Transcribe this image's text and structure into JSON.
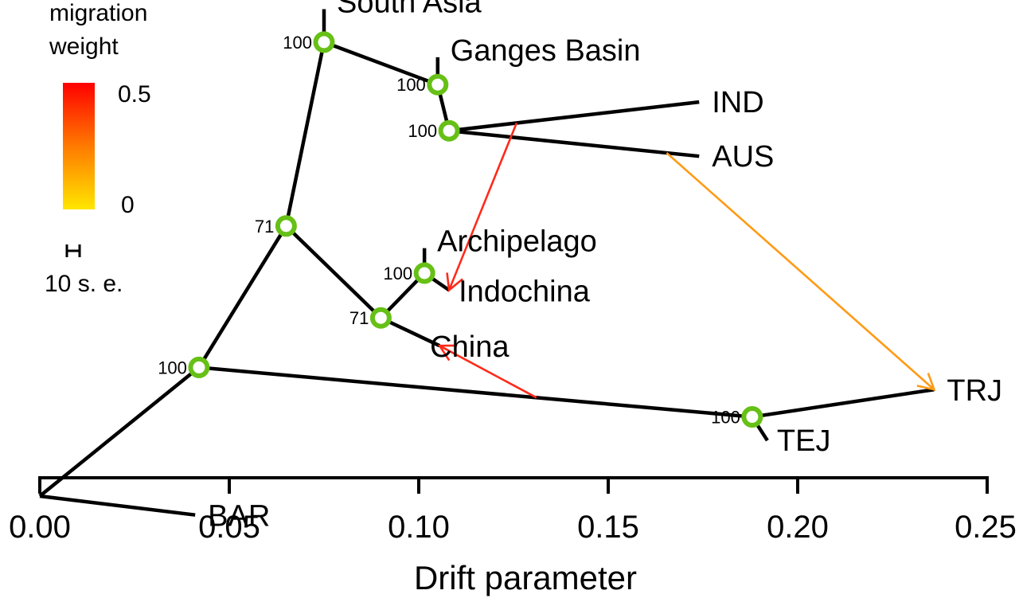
{
  "chart_data": {
    "type": "tree",
    "xlabel": "Drift parameter",
    "xlim": [
      0.0,
      0.25
    ],
    "xticks": [
      0.0,
      0.05,
      0.1,
      0.15,
      0.2,
      0.25
    ],
    "xtick_labels": [
      "0.00",
      "0.05",
      "0.10",
      "0.15",
      "0.20",
      "0.25"
    ],
    "legend": {
      "title_lines": [
        "migration",
        "weight"
      ],
      "scale_max_label": "0.5",
      "scale_min_label": "0",
      "gradient_colors": [
        "#ff0000",
        "#ffe600"
      ],
      "se_label": "10 s. e."
    },
    "nodes": [
      {
        "id": "root",
        "x": 0.0,
        "row": 9.73
      },
      {
        "id": "n_cult",
        "x": 0.042,
        "row": 7.0,
        "support": "100"
      },
      {
        "id": "n_indica_aus",
        "x": 0.065,
        "row": 4.0,
        "support": "71"
      },
      {
        "id": "n_sa",
        "x": 0.075,
        "row": 0.1,
        "support": "100"
      },
      {
        "id": "n_gb",
        "x": 0.105,
        "row": 1.0,
        "support": "100"
      },
      {
        "id": "n_ind_aus",
        "x": 0.108,
        "row": 1.98,
        "support": "100"
      },
      {
        "id": "n_ai",
        "x": 0.1015,
        "row": 5.0,
        "support": "100"
      },
      {
        "id": "n_sea",
        "x": 0.09,
        "row": 5.95,
        "support": "71"
      },
      {
        "id": "n_jap",
        "x": 0.188,
        "row": 8.05,
        "support": "100"
      }
    ],
    "leaves": [
      {
        "label": "South  Asia",
        "x": 0.075,
        "row": -0.6
      },
      {
        "label": "Ganges  Basin",
        "x": 0.105,
        "row": 0.42
      },
      {
        "label": "IND",
        "x": 0.174,
        "row": 1.37
      },
      {
        "label": "AUS",
        "x": 0.174,
        "row": 2.52
      },
      {
        "label": "Archipelago",
        "x": 0.1015,
        "row": 4.47
      },
      {
        "label": "Indochina",
        "x": 0.108,
        "row": 5.36
      },
      {
        "label": "China",
        "x": 0.1055,
        "row": 6.54
      },
      {
        "label": "TRJ",
        "x": 0.236,
        "row": 7.47
      },
      {
        "label": "TEJ",
        "x": 0.192,
        "row": 8.55
      },
      {
        "label": "BAR",
        "x": 0.041,
        "row": 10.13
      }
    ],
    "edges": [
      [
        "root",
        "n_cult"
      ],
      [
        "root",
        "BAR"
      ],
      [
        "n_cult",
        "n_indica_aus"
      ],
      [
        "n_cult",
        "n_jap"
      ],
      [
        "n_indica_aus",
        "n_sa"
      ],
      [
        "n_indica_aus",
        "n_sea"
      ],
      [
        "n_sa",
        "South  Asia"
      ],
      [
        "n_sa",
        "n_gb"
      ],
      [
        "n_gb",
        "Ganges  Basin"
      ],
      [
        "n_gb",
        "n_ind_aus"
      ],
      [
        "n_ind_aus",
        "IND"
      ],
      [
        "n_ind_aus",
        "AUS"
      ],
      [
        "n_sea",
        "n_ai"
      ],
      [
        "n_sea",
        "China"
      ],
      [
        "n_ai",
        "Archipelago"
      ],
      [
        "n_ai",
        "Indochina"
      ],
      [
        "n_jap",
        "TRJ"
      ],
      [
        "n_jap",
        "TEJ"
      ]
    ],
    "migrations": [
      {
        "from_edge": [
          "n_ind_aus",
          "IND"
        ],
        "from_t": 0.27,
        "to": "Indochina",
        "weight": 0.5,
        "color": "#ff2a1a"
      },
      {
        "from_edge": [
          "n_cult",
          "n_jap"
        ],
        "from_t": 0.61,
        "to": "China",
        "weight": 0.5,
        "color": "#ff2a1a"
      },
      {
        "from_edge": [
          "n_ind_aus",
          "AUS"
        ],
        "from_t": 0.87,
        "to": "TRJ",
        "weight": 0.15,
        "color": "#ff9a16"
      }
    ]
  }
}
